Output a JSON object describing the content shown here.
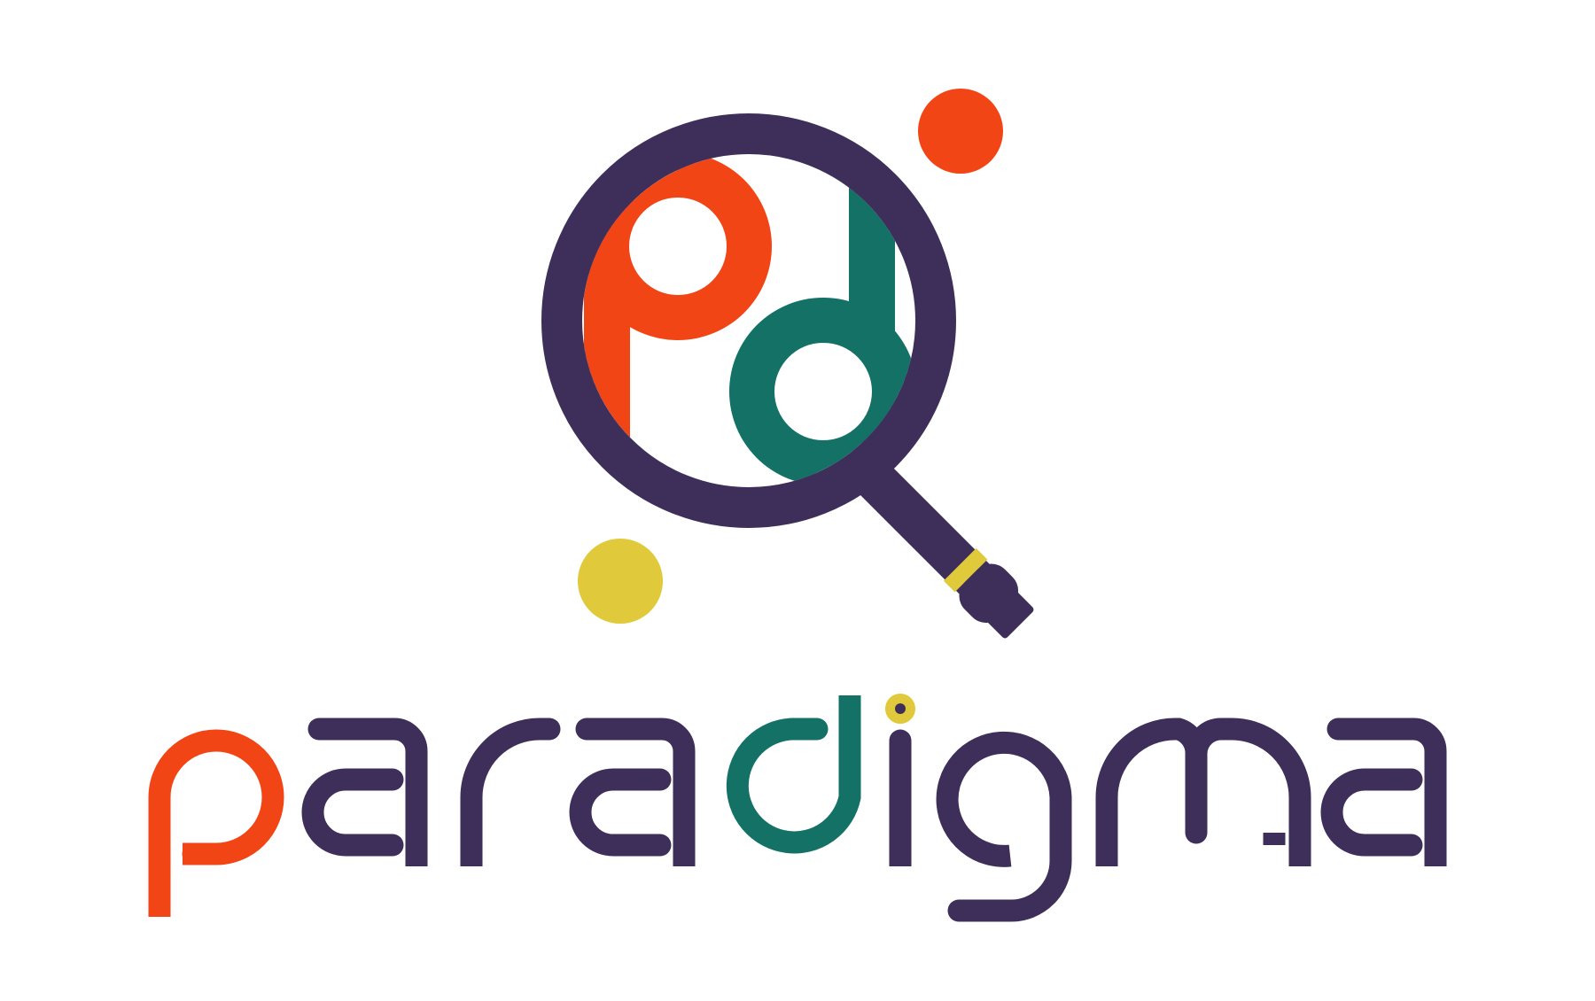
{
  "logo": {
    "wordmark": "paradigma",
    "colors": {
      "orange": "#f24516",
      "teal": "#137165",
      "purple": "#3d2f5a",
      "yellow": "#e0c93a",
      "background": "#ffffff"
    },
    "icon": "magnifying-glass-with-pd-monogram-icon"
  }
}
